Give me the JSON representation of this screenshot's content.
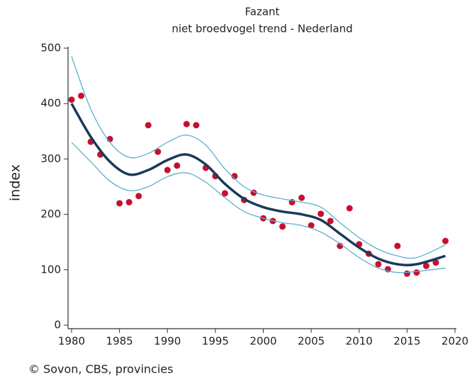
{
  "chart_data": {
    "type": "line",
    "title": "Fazant",
    "subtitle": "niet broedvogel trend - Nederland",
    "ylabel": "index",
    "source": "© Sovon, CBS, provincies",
    "xlim": [
      1980,
      2020
    ],
    "xticks": [
      1980,
      1985,
      1990,
      1995,
      2000,
      2005,
      2010,
      2015,
      2020
    ],
    "ylim": [
      0,
      500
    ],
    "yticks": [
      0,
      100,
      200,
      300,
      400,
      500
    ],
    "grid": false,
    "series": [
      {
        "mode": "markers",
        "color": "#c8102e",
        "x": [
          1980,
          1981,
          1982,
          1983,
          1984,
          1985,
          1986,
          1987,
          1988,
          1989,
          1990,
          1991,
          1992,
          1993,
          1994,
          1995,
          1996,
          1997,
          1998,
          1999,
          2000,
          2001,
          2002,
          2003,
          2004,
          2005,
          2006,
          2007,
          2008,
          2009,
          2010,
          2011,
          2012,
          2013,
          2014,
          2015,
          2016,
          2017,
          2018,
          2019
        ],
        "values": [
          407,
          414,
          331,
          308,
          336,
          220,
          222,
          233,
          361,
          313,
          280,
          288,
          363,
          361,
          284,
          269,
          238,
          269,
          226,
          239,
          193,
          188,
          178,
          222,
          230,
          180,
          201,
          188,
          143,
          211,
          146,
          129,
          110,
          101,
          143,
          93,
          95,
          107,
          113,
          152
        ]
      },
      {
        "mode": "line",
        "color": "#5bb0d0",
        "width": 1.3,
        "x": [
          1980,
          1982,
          1984,
          1986,
          1988,
          1990,
          1992,
          1994,
          1996,
          1998,
          2000,
          2002,
          2004,
          2006,
          2008,
          2010,
          2012,
          2014,
          2016,
          2019
        ],
        "values": [
          485,
          390,
          330,
          303,
          310,
          330,
          343,
          325,
          282,
          250,
          235,
          228,
          222,
          213,
          185,
          158,
          137,
          125,
          122,
          145
        ]
      },
      {
        "mode": "line",
        "color": "#5bb0d0",
        "width": 1.3,
        "x": [
          1980,
          1982,
          1984,
          1986,
          1988,
          1990,
          1992,
          1994,
          1996,
          1998,
          2000,
          2002,
          2004,
          2006,
          2008,
          2010,
          2012,
          2014,
          2016,
          2019
        ],
        "values": [
          330,
          295,
          260,
          243,
          250,
          268,
          275,
          258,
          230,
          205,
          193,
          185,
          180,
          168,
          147,
          122,
          103,
          95,
          97,
          103
        ]
      },
      {
        "mode": "line",
        "color": "#1a3a5c",
        "width": 3.5,
        "x": [
          1980,
          1982,
          1984,
          1986,
          1988,
          1990,
          1992,
          1994,
          1996,
          1998,
          2000,
          2002,
          2004,
          2006,
          2008,
          2010,
          2012,
          2014,
          2016,
          2019
        ],
        "values": [
          400,
          340,
          295,
          272,
          280,
          298,
          308,
          290,
          255,
          228,
          213,
          205,
          200,
          190,
          165,
          140,
          120,
          110,
          110,
          125
        ]
      }
    ]
  }
}
